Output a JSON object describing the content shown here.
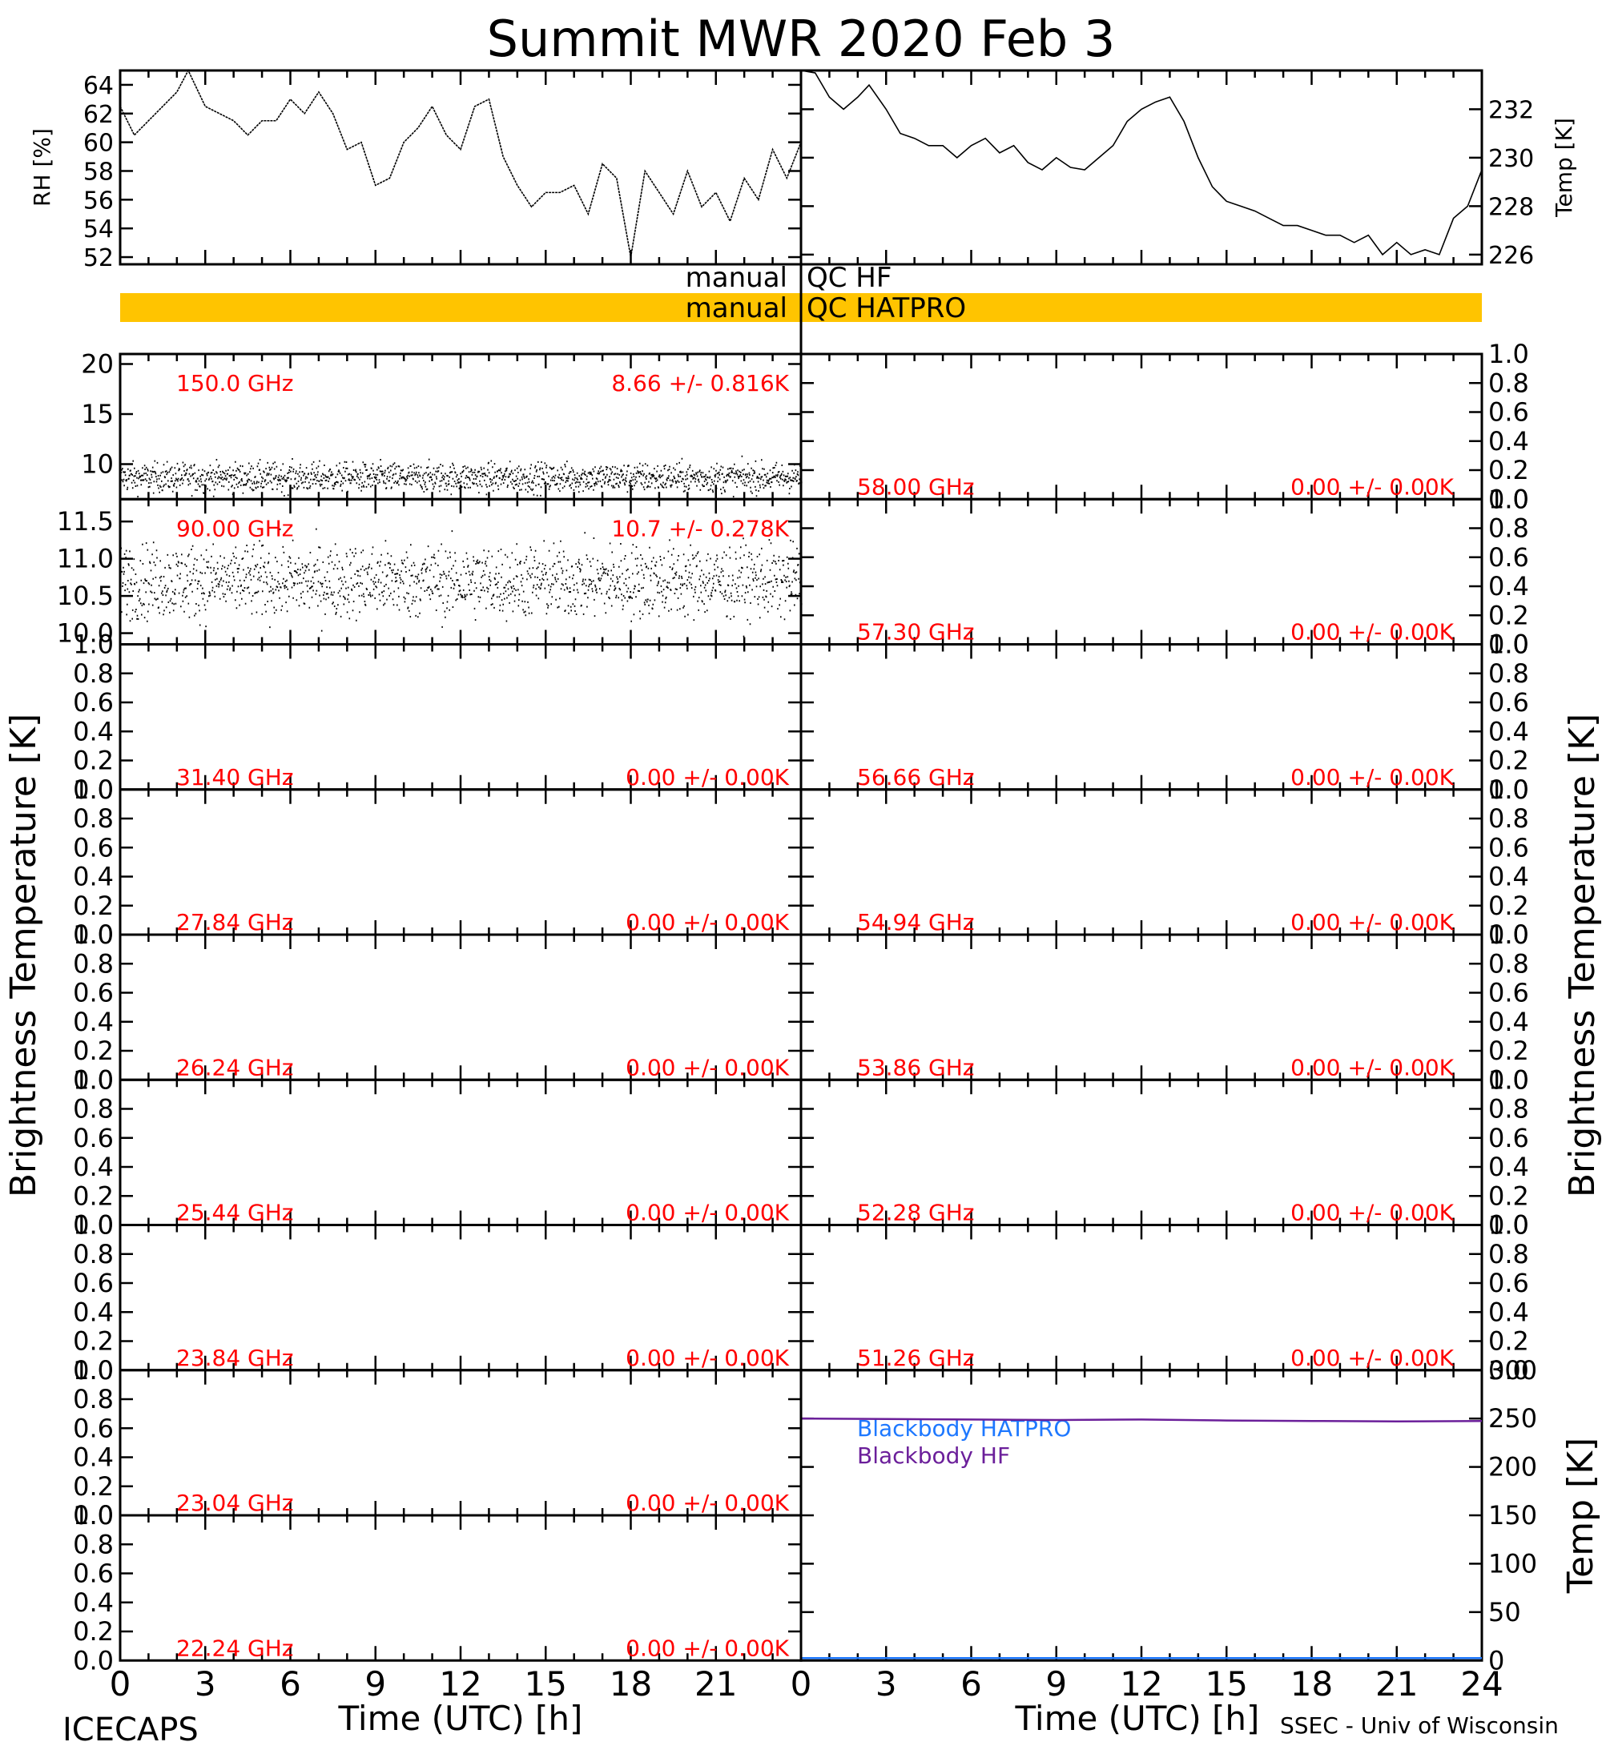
{
  "title": "Summit MWR 2020 Feb  3",
  "footer_left": "ICECAPS",
  "footer_right": "SSEC - Univ of Wisconsin",
  "xlabel": "Time (UTC) [h]",
  "xticks": [
    "0",
    "3",
    "6",
    "9",
    "12",
    "15",
    "18",
    "21",
    "24"
  ],
  "left_axis_label": "Brightness Temperature [K]",
  "right_axis_label": "Brightness Temperature [K]",
  "qc_flags": [
    {
      "label": "manual",
      "text": "QC HF",
      "color": "#ffffff"
    },
    {
      "label": "manual",
      "text": "QC HATPRO",
      "color": "#ffc400"
    }
  ],
  "colors": {
    "annotation": "#ff0000",
    "blackbody_hatpro": "#1e78ff",
    "blackbody_hf": "#6b1f9a",
    "qc_hatpro": "#ffc400"
  },
  "chart_data": [
    {
      "type": "line",
      "id": "rh",
      "ylabel": "RH [%]",
      "ylim": [
        51.5,
        65
      ],
      "yticks": [
        "52",
        "54",
        "56",
        "58",
        "60",
        "62",
        "64"
      ],
      "x": [
        0,
        0.5,
        1,
        1.5,
        2,
        2.4,
        3,
        3.5,
        4,
        4.5,
        5,
        5.5,
        6,
        6.5,
        7,
        7.5,
        8,
        8.5,
        9,
        9.5,
        10,
        10.5,
        11,
        11.5,
        12,
        12.5,
        13,
        13.5,
        14,
        14.5,
        15,
        15.5,
        16,
        16.5,
        17,
        17.5,
        18,
        18.5,
        19,
        19.5,
        20,
        20.5,
        21,
        21.5,
        22,
        22.5,
        23,
        23.5,
        24
      ],
      "y": [
        62.5,
        60.5,
        61.5,
        62.5,
        63.5,
        65.0,
        62.5,
        62.0,
        61.5,
        60.5,
        61.5,
        61.5,
        63.0,
        62.0,
        63.5,
        62.0,
        59.5,
        60.0,
        57.0,
        57.5,
        60.0,
        61.0,
        62.5,
        60.5,
        59.5,
        62.5,
        63.0,
        59.0,
        57.0,
        55.5,
        56.5,
        56.5,
        57.0,
        55.0,
        58.5,
        57.5,
        52.0,
        58.0,
        56.5,
        55.0,
        58.0,
        55.5,
        56.5,
        54.5,
        57.5,
        56.0,
        59.5,
        57.5,
        60.0
      ]
    },
    {
      "type": "line",
      "id": "temp",
      "ylabel": "Temp [K]",
      "ylim": [
        225.6,
        233.6
      ],
      "yticks": [
        "226",
        "228",
        "230",
        "232"
      ],
      "x": [
        0,
        0.5,
        1,
        1.5,
        2,
        2.4,
        3,
        3.5,
        4,
        4.5,
        5,
        5.5,
        6,
        6.5,
        7,
        7.5,
        8,
        8.5,
        9,
        9.5,
        10,
        10.5,
        11,
        11.5,
        12,
        12.5,
        13,
        13.5,
        14,
        14.5,
        15,
        15.5,
        16,
        16.5,
        17,
        17.5,
        18,
        18.5,
        19,
        19.5,
        20,
        20.5,
        21,
        21.5,
        22,
        22.5,
        23,
        23.5,
        24
      ],
      "y": [
        233.8,
        233.5,
        232.5,
        232.0,
        232.5,
        233.0,
        232.0,
        231.0,
        230.8,
        230.5,
        230.5,
        230.0,
        230.5,
        230.8,
        230.2,
        230.5,
        229.8,
        229.5,
        230.0,
        229.6,
        229.5,
        230.0,
        230.5,
        231.5,
        232.0,
        232.3,
        232.5,
        231.5,
        230.0,
        228.8,
        228.2,
        228.0,
        227.8,
        227.5,
        227.2,
        227.2,
        227.0,
        226.8,
        226.8,
        226.5,
        226.8,
        226.0,
        226.5,
        226.0,
        226.2,
        226.0,
        227.5,
        228.0,
        229.5
      ]
    },
    {
      "type": "scatter",
      "id": "tb150",
      "label": "150.0 GHz",
      "stat": "8.66 +/- 0.816K",
      "ylim": [
        6.5,
        21
      ],
      "yticks": [
        "10",
        "15",
        "20"
      ],
      "mean": 8.66,
      "sd": 0.816
    },
    {
      "type": "scatter",
      "id": "tb90",
      "label": "90.00 GHz",
      "stat": "10.7 +/- 0.278K",
      "ylim": [
        9.85,
        11.8
      ],
      "yticks": [
        "10.0",
        "10.5",
        "11.0",
        "11.5"
      ],
      "mean": 10.7,
      "sd": 0.278
    },
    {
      "type": "line",
      "id": "tb5800",
      "label": "58.00 GHz",
      "stat": "0.00 +/- 0.00K",
      "ylim": [
        0,
        1
      ]
    },
    {
      "type": "line",
      "id": "tb5730",
      "label": "57.30 GHz",
      "stat": "0.00 +/- 0.00K",
      "ylim": [
        0,
        1
      ]
    },
    {
      "type": "line",
      "id": "tb3140",
      "label": "31.40 GHz",
      "stat": "0.00 +/- 0.00K",
      "ylim": [
        0,
        1
      ]
    },
    {
      "type": "line",
      "id": "tb5666",
      "label": "56.66 GHz",
      "stat": "0.00 +/- 0.00K",
      "ylim": [
        0,
        1
      ]
    },
    {
      "type": "line",
      "id": "tb2784",
      "label": "27.84 GHz",
      "stat": "0.00 +/- 0.00K",
      "ylim": [
        0,
        1
      ]
    },
    {
      "type": "line",
      "id": "tb5494",
      "label": "54.94 GHz",
      "stat": "0.00 +/- 0.00K",
      "ylim": [
        0,
        1
      ]
    },
    {
      "type": "line",
      "id": "tb2624",
      "label": "26.24 GHz",
      "stat": "0.00 +/- 0.00K",
      "ylim": [
        0,
        1
      ]
    },
    {
      "type": "line",
      "id": "tb5386",
      "label": "53.86 GHz",
      "stat": "0.00 +/- 0.00K",
      "ylim": [
        0,
        1
      ]
    },
    {
      "type": "line",
      "id": "tb2544",
      "label": "25.44 GHz",
      "stat": "0.00 +/- 0.00K",
      "ylim": [
        0,
        1
      ]
    },
    {
      "type": "line",
      "id": "tb5228",
      "label": "52.28 GHz",
      "stat": "0.00 +/- 0.00K",
      "ylim": [
        0,
        1
      ]
    },
    {
      "type": "line",
      "id": "tb2384",
      "label": "23.84 GHz",
      "stat": "0.00 +/- 0.00K",
      "ylim": [
        0,
        1
      ]
    },
    {
      "type": "line",
      "id": "tb5126",
      "label": "51.26 GHz",
      "stat": "0.00 +/- 0.00K",
      "ylim": [
        0,
        1
      ]
    },
    {
      "type": "line",
      "id": "tb2304",
      "label": "23.04 GHz",
      "stat": "0.00 +/- 0.00K",
      "ylim": [
        0,
        1
      ]
    },
    {
      "type": "line",
      "id": "tb2224",
      "label": "22.24 GHz",
      "stat": "0.00 +/- 0.00K",
      "ylim": [
        0,
        1
      ]
    },
    {
      "type": "line",
      "id": "blackbody",
      "ylabel": "Temp [K]",
      "ylim": [
        0,
        300
      ],
      "yticks": [
        "0",
        "50",
        "100",
        "150",
        "200",
        "250",
        "300"
      ],
      "series": [
        {
          "name": "Blackbody HATPRO",
          "x": [
            0,
            24
          ],
          "y": [
            0,
            0
          ]
        },
        {
          "name": "Blackbody HF",
          "x": [
            0,
            3,
            6,
            9,
            12,
            15,
            18,
            21,
            24
          ],
          "y": [
            250.0,
            249.5,
            249.0,
            248.5,
            249.0,
            248.0,
            247.5,
            247.0,
            247.5
          ]
        }
      ]
    }
  ]
}
